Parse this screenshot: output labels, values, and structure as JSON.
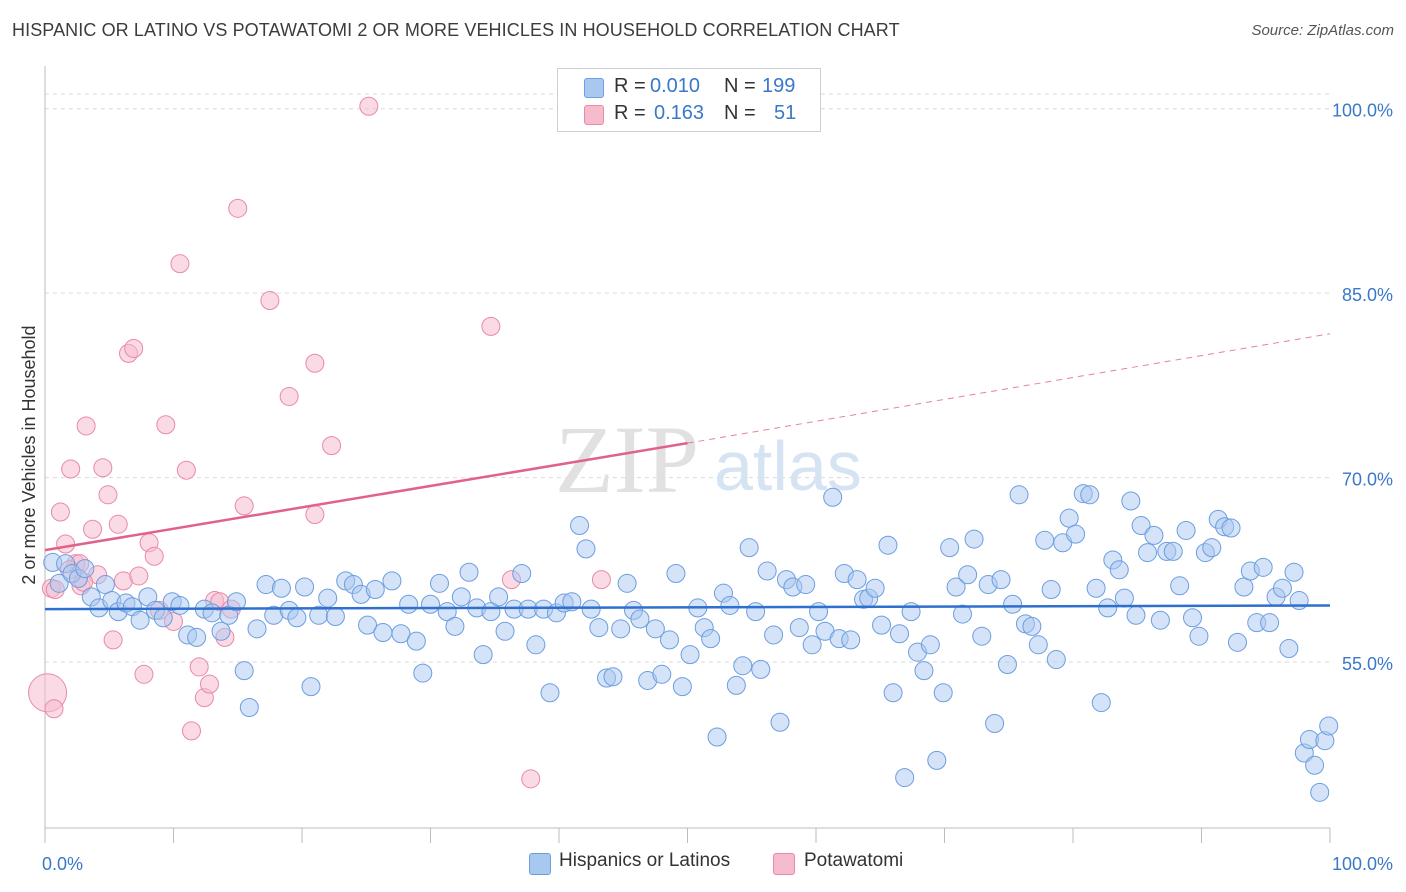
{
  "title": "HISPANIC OR LATINO VS POTAWATOMI 2 OR MORE VEHICLES IN HOUSEHOLD CORRELATION CHART",
  "source": "Source: ZipAtlas.com",
  "watermark": {
    "zip": "ZIP",
    "atlas": "atlas"
  },
  "legend_top": {
    "rows": [
      {
        "r_label": "R =",
        "r_value": "0.010",
        "n_label": "N =",
        "n_value": "199"
      },
      {
        "r_label": "R =",
        "r_value": "0.163",
        "n_label": "N =",
        "n_value": "51"
      }
    ]
  },
  "colors": {
    "blue_fill": "#a9c8f0",
    "blue_stroke": "#6c9ee0",
    "blue_line": "#2f6fce",
    "pink_fill": "#f6bccd",
    "pink_stroke": "#e98aa6",
    "pink_line": "#e0628a",
    "tick_label": "#3a78c8",
    "grid": "#d9d9d9"
  },
  "chart_data": {
    "type": "scatter",
    "title": "HISPANIC OR LATINO VS POTAWATOMI 2 OR MORE VEHICLES IN HOUSEHOLD CORRELATION CHART",
    "xlabel": "",
    "ylabel": "2 or more Vehicles in Household",
    "xlim": [
      0,
      100
    ],
    "ylim": [
      41.5,
      102.5
    ],
    "x_tick_labels": [
      "0.0%",
      "100.0%"
    ],
    "y_ticks": [
      55,
      70,
      85,
      100
    ],
    "y_tick_labels": [
      "55.0%",
      "70.0%",
      "85.0%",
      "100.0%"
    ],
    "grid": true,
    "legend_position": "bottom",
    "series": [
      {
        "name": "Hispanics or Latinos",
        "color": "#a9c8f0",
        "trend": {
          "x": [
            0,
            100
          ],
          "y": [
            59.3,
            59.6
          ]
        },
        "points": [
          [
            0.6,
            63.1
          ],
          [
            1.1,
            61.4
          ],
          [
            1.6,
            63.0
          ],
          [
            2.1,
            62.2
          ],
          [
            2.6,
            61.8
          ],
          [
            3.1,
            62.6
          ],
          [
            3.6,
            60.3
          ],
          [
            4.2,
            59.4
          ],
          [
            4.7,
            61.3
          ],
          [
            5.2,
            60.0
          ],
          [
            5.7,
            59.1
          ],
          [
            6.3,
            59.8
          ],
          [
            6.8,
            59.5
          ],
          [
            7.4,
            58.4
          ],
          [
            8.0,
            60.3
          ],
          [
            8.6,
            59.2
          ],
          [
            9.2,
            58.6
          ],
          [
            9.9,
            59.9
          ],
          [
            10.5,
            59.6
          ],
          [
            11.1,
            57.2
          ],
          [
            11.8,
            57.0
          ],
          [
            12.4,
            59.3
          ],
          [
            13.0,
            59.0
          ],
          [
            13.7,
            57.5
          ],
          [
            14.3,
            58.8
          ],
          [
            14.9,
            59.9
          ],
          [
            15.5,
            54.3
          ],
          [
            15.9,
            51.3
          ],
          [
            16.5,
            57.7
          ],
          [
            17.2,
            61.3
          ],
          [
            17.8,
            58.8
          ],
          [
            18.4,
            61.0
          ],
          [
            19.0,
            59.2
          ],
          [
            19.6,
            58.6
          ],
          [
            20.2,
            61.1
          ],
          [
            20.7,
            53.0
          ],
          [
            21.3,
            58.8
          ],
          [
            22.0,
            60.2
          ],
          [
            22.6,
            58.7
          ],
          [
            23.4,
            61.6
          ],
          [
            24.0,
            61.3
          ],
          [
            24.6,
            60.5
          ],
          [
            25.1,
            58.0
          ],
          [
            25.7,
            60.9
          ],
          [
            26.3,
            57.4
          ],
          [
            27.0,
            61.6
          ],
          [
            27.7,
            57.3
          ],
          [
            28.3,
            59.7
          ],
          [
            28.9,
            56.7
          ],
          [
            29.4,
            54.1
          ],
          [
            30.0,
            59.7
          ],
          [
            30.7,
            61.4
          ],
          [
            31.3,
            59.1
          ],
          [
            31.9,
            57.9
          ],
          [
            32.4,
            60.3
          ],
          [
            33.0,
            62.3
          ],
          [
            33.6,
            59.4
          ],
          [
            34.1,
            55.6
          ],
          [
            34.7,
            59.1
          ],
          [
            35.3,
            60.3
          ],
          [
            35.8,
            57.5
          ],
          [
            36.5,
            59.3
          ],
          [
            37.1,
            62.2
          ],
          [
            37.6,
            59.3
          ],
          [
            38.2,
            56.4
          ],
          [
            38.8,
            59.3
          ],
          [
            39.3,
            52.5
          ],
          [
            39.8,
            59.0
          ],
          [
            40.4,
            59.8
          ],
          [
            41.0,
            59.9
          ],
          [
            41.6,
            66.1
          ],
          [
            42.1,
            64.2
          ],
          [
            42.5,
            59.3
          ],
          [
            43.1,
            57.8
          ],
          [
            43.7,
            53.7
          ],
          [
            44.2,
            53.8
          ],
          [
            44.8,
            57.7
          ],
          [
            45.3,
            61.4
          ],
          [
            45.8,
            59.2
          ],
          [
            46.3,
            58.5
          ],
          [
            46.9,
            53.5
          ],
          [
            47.5,
            57.7
          ],
          [
            48.0,
            54.0
          ],
          [
            48.6,
            56.8
          ],
          [
            49.1,
            62.2
          ],
          [
            49.6,
            53.0
          ],
          [
            50.2,
            55.6
          ],
          [
            50.8,
            59.4
          ],
          [
            51.3,
            57.8
          ],
          [
            51.8,
            56.9
          ],
          [
            52.3,
            48.9
          ],
          [
            52.8,
            60.6
          ],
          [
            53.3,
            59.6
          ],
          [
            53.8,
            53.1
          ],
          [
            54.3,
            54.7
          ],
          [
            54.8,
            64.3
          ],
          [
            55.3,
            59.1
          ],
          [
            55.7,
            54.4
          ],
          [
            56.2,
            62.4
          ],
          [
            56.7,
            57.2
          ],
          [
            57.2,
            50.1
          ],
          [
            57.7,
            61.7
          ],
          [
            58.2,
            61.1
          ],
          [
            58.7,
            57.8
          ],
          [
            59.2,
            61.3
          ],
          [
            59.7,
            56.4
          ],
          [
            60.2,
            59.1
          ],
          [
            60.7,
            57.5
          ],
          [
            61.3,
            68.4
          ],
          [
            61.8,
            56.9
          ],
          [
            62.2,
            62.2
          ],
          [
            62.7,
            56.8
          ],
          [
            63.2,
            61.7
          ],
          [
            63.7,
            60.1
          ],
          [
            64.1,
            60.2
          ],
          [
            64.6,
            61.0
          ],
          [
            65.1,
            58.0
          ],
          [
            65.6,
            64.5
          ],
          [
            66.0,
            52.5
          ],
          [
            66.5,
            57.3
          ],
          [
            66.9,
            45.6
          ],
          [
            67.4,
            59.1
          ],
          [
            67.9,
            55.8
          ],
          [
            68.4,
            54.3
          ],
          [
            68.9,
            56.4
          ],
          [
            69.4,
            47.0
          ],
          [
            69.9,
            52.5
          ],
          [
            70.4,
            64.3
          ],
          [
            70.9,
            61.1
          ],
          [
            71.4,
            58.9
          ],
          [
            71.8,
            62.1
          ],
          [
            72.3,
            65.0
          ],
          [
            72.9,
            57.1
          ],
          [
            73.4,
            61.3
          ],
          [
            73.9,
            50.0
          ],
          [
            74.4,
            61.7
          ],
          [
            74.9,
            54.8
          ],
          [
            75.3,
            59.7
          ],
          [
            75.8,
            68.6
          ],
          [
            76.3,
            58.1
          ],
          [
            76.8,
            57.9
          ],
          [
            77.3,
            56.4
          ],
          [
            77.8,
            64.9
          ],
          [
            78.3,
            60.9
          ],
          [
            78.7,
            55.2
          ],
          [
            79.2,
            64.7
          ],
          [
            79.7,
            66.7
          ],
          [
            80.2,
            65.4
          ],
          [
            80.8,
            68.7
          ],
          [
            81.3,
            68.6
          ],
          [
            81.8,
            61.0
          ],
          [
            82.2,
            51.7
          ],
          [
            82.7,
            59.4
          ],
          [
            83.1,
            63.3
          ],
          [
            83.6,
            62.5
          ],
          [
            84.0,
            60.2
          ],
          [
            84.5,
            68.1
          ],
          [
            84.9,
            58.8
          ],
          [
            85.3,
            66.1
          ],
          [
            85.8,
            63.9
          ],
          [
            86.3,
            65.3
          ],
          [
            86.8,
            58.4
          ],
          [
            87.3,
            64.0
          ],
          [
            87.8,
            64.0
          ],
          [
            88.3,
            61.2
          ],
          [
            88.8,
            65.7
          ],
          [
            89.3,
            58.6
          ],
          [
            89.8,
            57.1
          ],
          [
            90.3,
            63.9
          ],
          [
            90.8,
            64.3
          ],
          [
            91.3,
            66.6
          ],
          [
            91.8,
            66.0
          ],
          [
            92.3,
            65.9
          ],
          [
            92.8,
            56.6
          ],
          [
            93.3,
            61.1
          ],
          [
            93.8,
            62.4
          ],
          [
            94.3,
            58.2
          ],
          [
            94.8,
            62.7
          ],
          [
            95.3,
            58.2
          ],
          [
            95.8,
            60.3
          ],
          [
            96.3,
            61.0
          ],
          [
            96.8,
            56.1
          ],
          [
            97.2,
            62.3
          ],
          [
            97.6,
            60.0
          ],
          [
            98.0,
            47.6
          ],
          [
            98.4,
            48.7
          ],
          [
            98.8,
            46.6
          ],
          [
            99.2,
            44.4
          ],
          [
            99.6,
            48.6
          ],
          [
            99.9,
            49.8
          ]
        ]
      },
      {
        "name": "Potawatomi",
        "color": "#f6bccd",
        "trend": {
          "x": [
            0,
            50
          ],
          "y": [
            64.1,
            72.8
          ],
          "dashed_to": {
            "x": 100,
            "y": 81.7
          }
        },
        "points": [
          [
            0.2,
            52.5
          ],
          [
            0.5,
            61.0
          ],
          [
            0.8,
            60.9
          ],
          [
            1.2,
            67.2
          ],
          [
            1.6,
            64.6
          ],
          [
            2.0,
            70.7
          ],
          [
            2.4,
            63.0
          ],
          [
            2.8,
            61.2
          ],
          [
            3.2,
            74.2
          ],
          [
            3.7,
            65.8
          ],
          [
            4.1,
            62.1
          ],
          [
            4.5,
            70.8
          ],
          [
            4.9,
            68.6
          ],
          [
            5.3,
            56.8
          ],
          [
            5.7,
            66.2
          ],
          [
            6.1,
            61.6
          ],
          [
            6.5,
            80.1
          ],
          [
            6.9,
            80.5
          ],
          [
            7.3,
            62.0
          ],
          [
            7.7,
            54.0
          ],
          [
            8.1,
            64.7
          ],
          [
            8.5,
            63.6
          ],
          [
            8.9,
            59.2
          ],
          [
            9.4,
            74.3
          ],
          [
            10.0,
            58.3
          ],
          [
            10.5,
            87.4
          ],
          [
            11.0,
            70.6
          ],
          [
            11.4,
            49.4
          ],
          [
            12.0,
            54.6
          ],
          [
            12.4,
            52.1
          ],
          [
            12.8,
            53.2
          ],
          [
            13.2,
            60.0
          ],
          [
            13.6,
            59.9
          ],
          [
            14.0,
            57.0
          ],
          [
            14.5,
            59.3
          ],
          [
            15.0,
            91.9
          ],
          [
            15.5,
            67.7
          ],
          [
            17.5,
            84.4
          ],
          [
            19.0,
            76.6
          ],
          [
            21.0,
            79.3
          ],
          [
            21.0,
            67.0
          ],
          [
            22.3,
            72.6
          ],
          [
            25.2,
            100.2
          ],
          [
            34.7,
            82.3
          ],
          [
            36.3,
            61.7
          ],
          [
            37.8,
            45.5
          ],
          [
            43.3,
            61.7
          ],
          [
            2.7,
            63.0
          ],
          [
            1.9,
            62.5
          ],
          [
            3.0,
            61.5
          ],
          [
            0.7,
            51.2
          ]
        ]
      }
    ]
  }
}
